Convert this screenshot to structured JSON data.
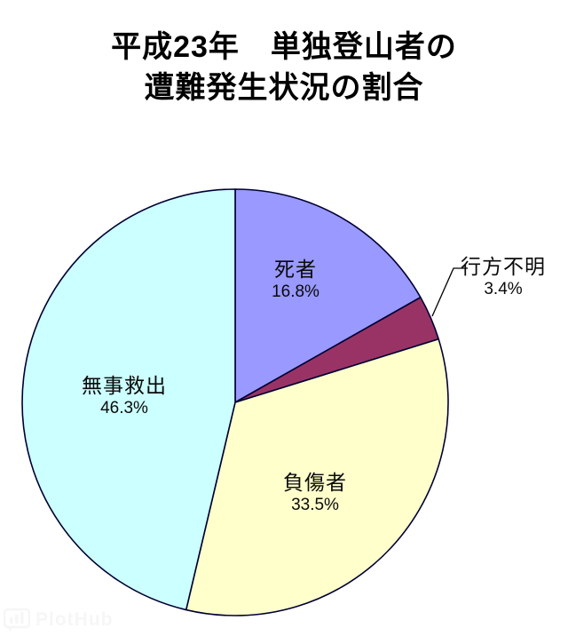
{
  "chart_data": {
    "type": "pie",
    "title": "平成23年　単独登山者の遭難発生状況の割合",
    "title_lines": [
      "平成23年　単独登山者の",
      "遭難発生状況の割合"
    ],
    "unit": "%",
    "slices": [
      {
        "label": "死者",
        "value": 16.8,
        "pct_label": "16.8%",
        "color": "#9999FF"
      },
      {
        "label": "行方不明",
        "value": 3.4,
        "pct_label": "3.4%",
        "color": "#993366"
      },
      {
        "label": "負傷者",
        "value": 33.5,
        "pct_label": "33.5%",
        "color": "#FFFFCC"
      },
      {
        "label": "無事救出",
        "value": 46.3,
        "pct_label": "46.3%",
        "color": "#CCFFFF"
      }
    ],
    "start_angle_deg": 0,
    "direction": "clockwise",
    "outline_color": "#000033",
    "background": "#FFFFFF",
    "legend": false,
    "labels_inside": true,
    "callout_label": "行方不明"
  },
  "watermark": {
    "text": "PlotHub"
  }
}
